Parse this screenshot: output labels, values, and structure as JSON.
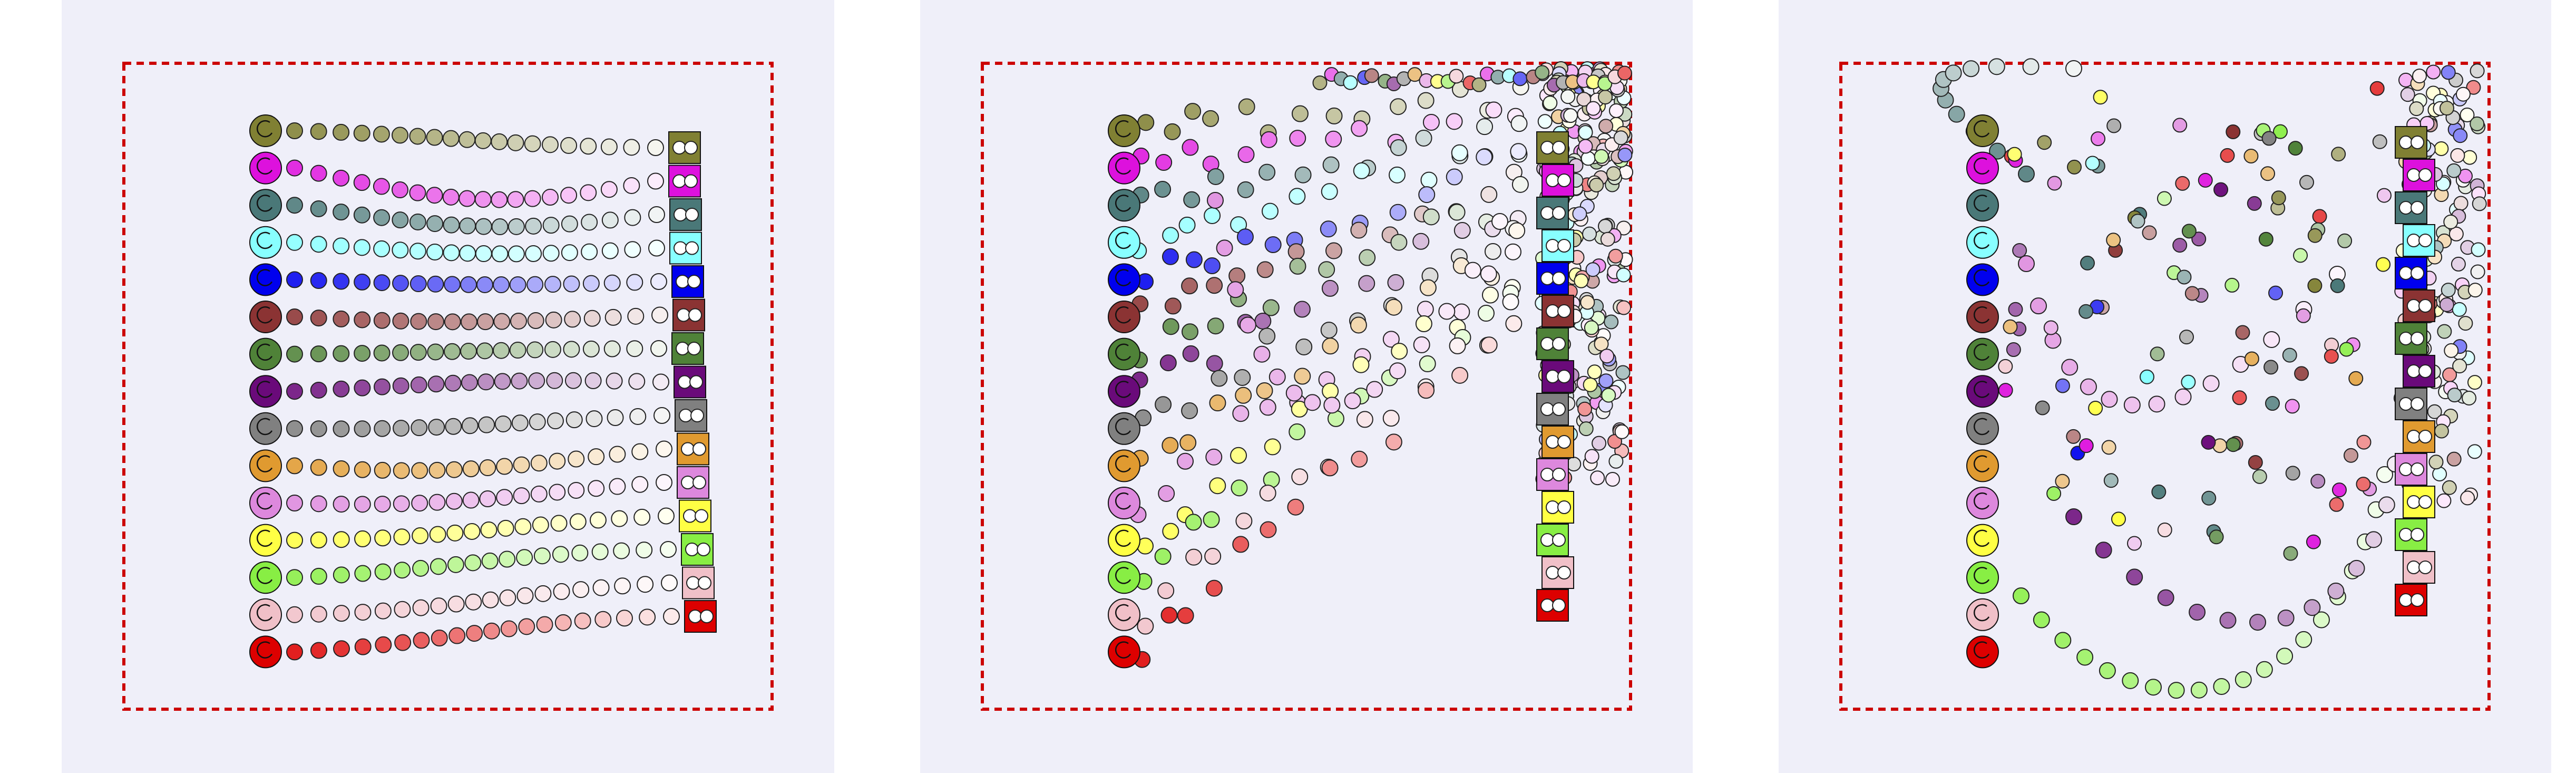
{
  "colors": {
    "background": "#ffffff",
    "panel_background": "#efeff9",
    "boundary": "#cc0000",
    "agents": [
      "#808033",
      "#dd11dd",
      "#4a7878",
      "#88ffff",
      "#0000ee",
      "#8b3333",
      "#4f8238",
      "#6a0a7a",
      "#808080",
      "#e09a30",
      "#dd88dd",
      "#ffff44",
      "#88ee44",
      "#f0c0c8",
      "#dd0000"
    ]
  },
  "panels": [
    {
      "name": "panel-1",
      "targets": [
        0,
        1,
        2,
        3,
        4,
        5,
        6,
        7,
        8,
        9,
        10,
        11,
        12,
        13,
        14
      ]
    },
    {
      "name": "panel-2",
      "targets": [
        0,
        1,
        2,
        3,
        4,
        5,
        6,
        7,
        8,
        9,
        10,
        11,
        12,
        13,
        14
      ]
    },
    {
      "name": "panel-3",
      "targets": [
        0,
        1,
        2,
        3,
        4,
        5,
        6,
        7,
        8,
        9,
        10,
        11,
        12,
        13,
        14
      ]
    }
  ]
}
